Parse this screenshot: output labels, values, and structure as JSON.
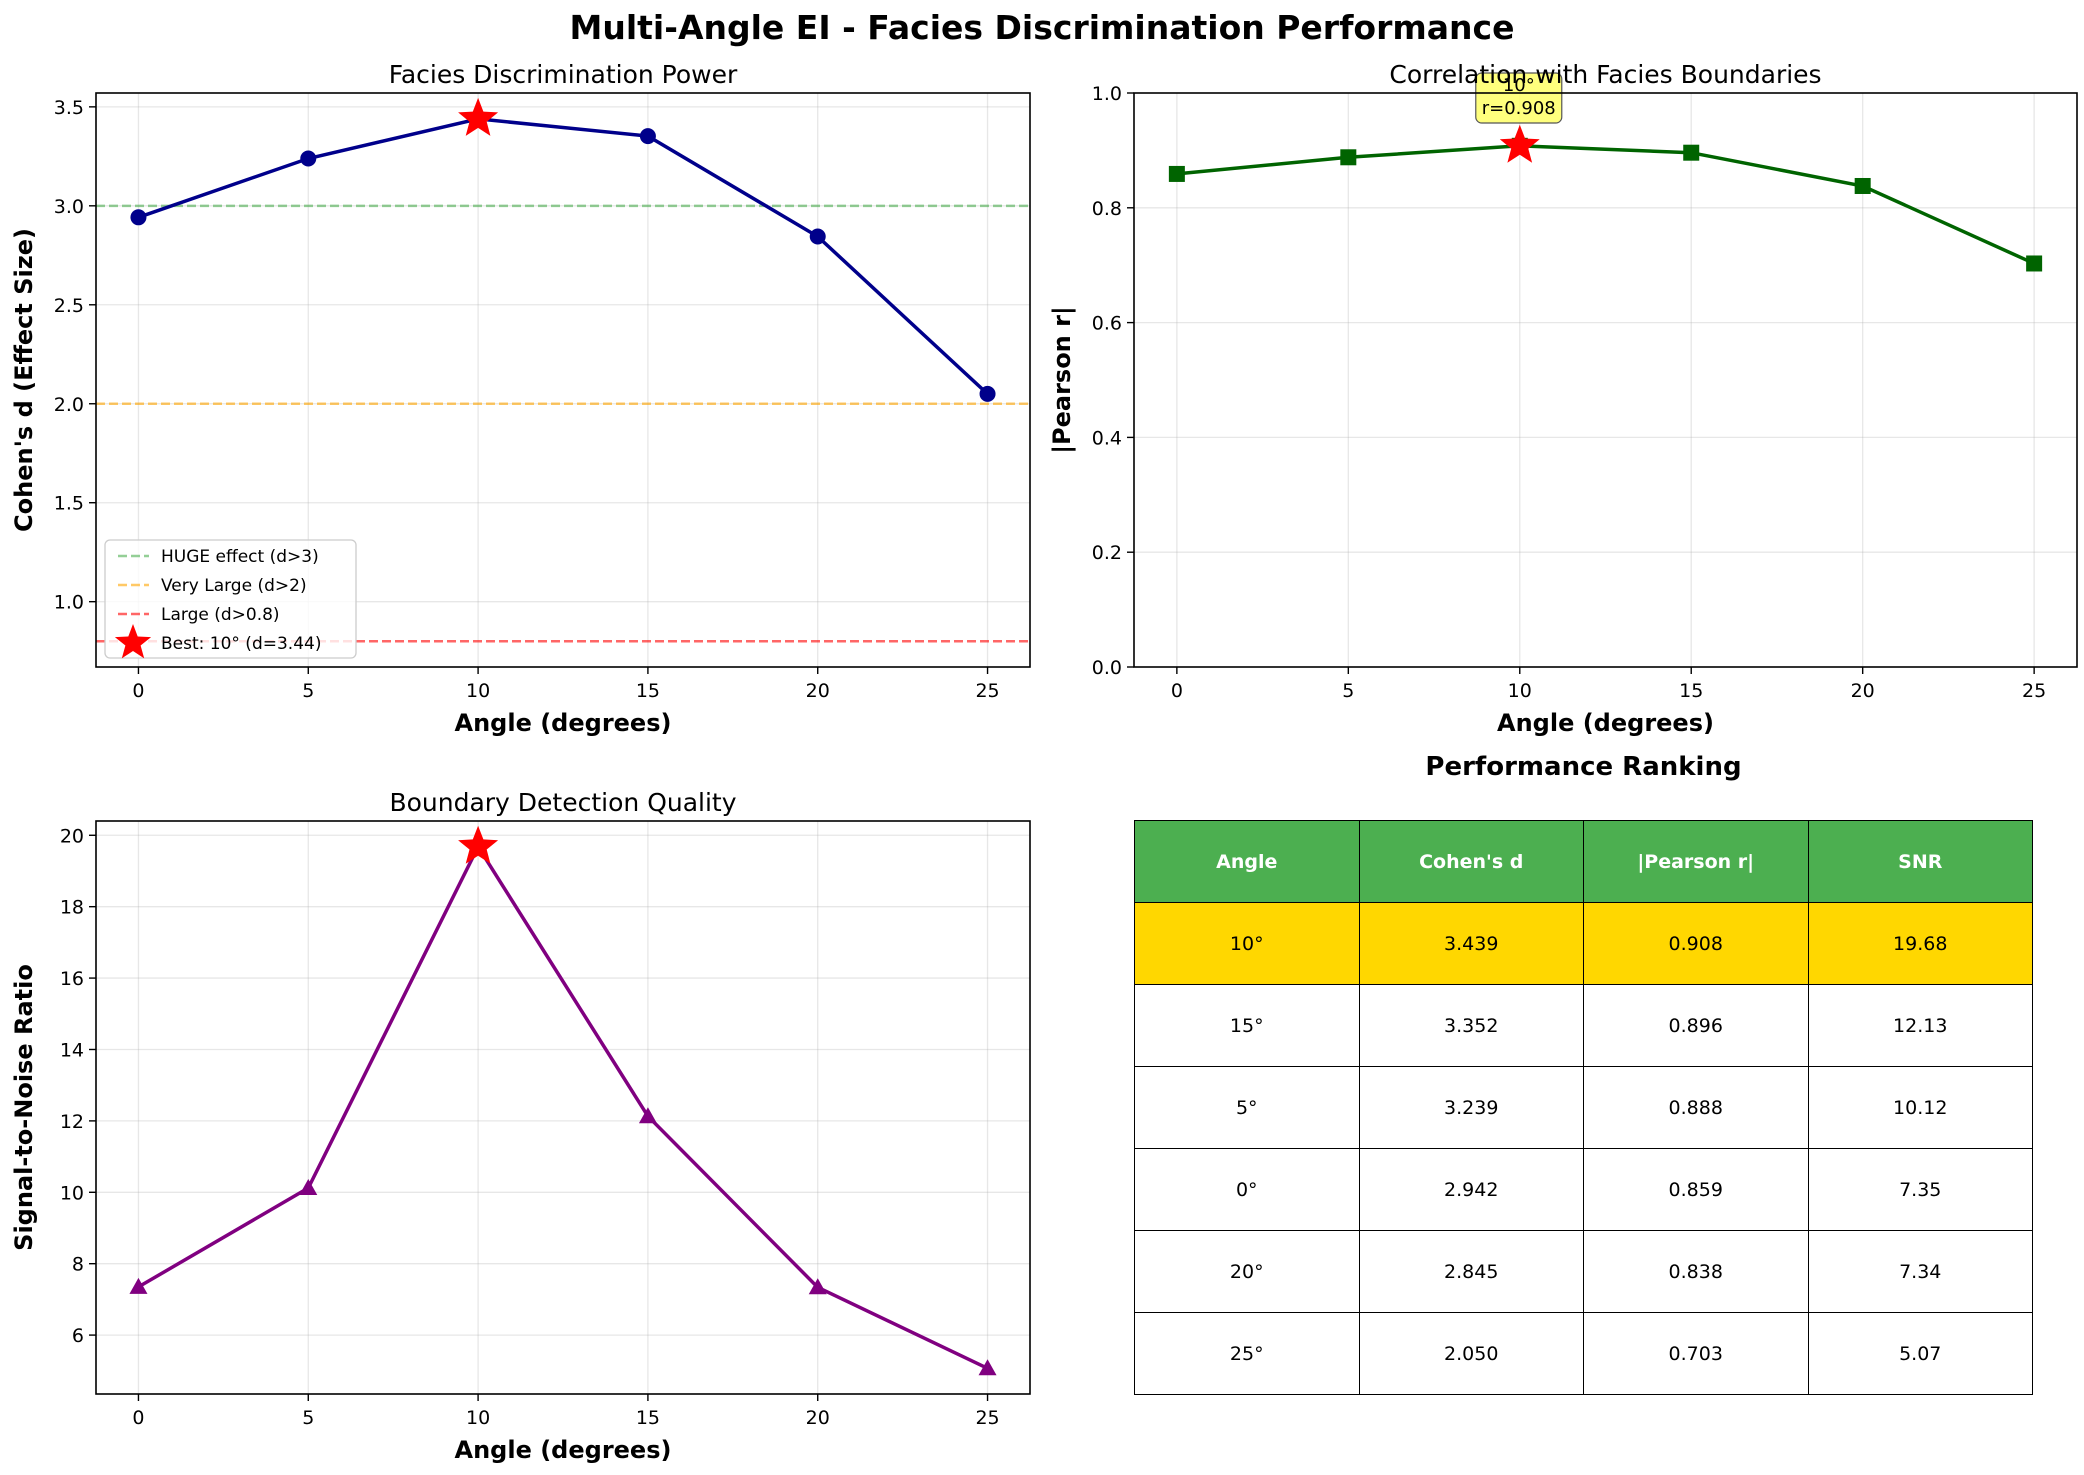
{
  "figure": {
    "title": "Multi-Angle EI - Facies Discrimination Performance"
  },
  "colors": {
    "navy": "#00008b",
    "darkgreen": "#006400",
    "purple": "#800080",
    "star": "#ff0000",
    "ref_green": "#4caf50",
    "ref_orange": "#ffa500",
    "ref_red": "#ff0000",
    "annot_bg": "#ffff66",
    "header_green": "#4caf50",
    "best_gold": "#ffd700"
  },
  "chart_data": [
    {
      "type": "line",
      "title": "Facies Discrimination Power",
      "xlabel": "Angle (degrees)",
      "ylabel": "Cohen's d (Effect Size)",
      "x": [
        0,
        5,
        10,
        15,
        20,
        25
      ],
      "series": [
        {
          "values": [
            2.942,
            3.239,
            3.439,
            3.352,
            2.845,
            2.05
          ],
          "color": "#00008b",
          "marker": "circle"
        }
      ],
      "reference_lines": [
        {
          "y": 3.0,
          "label": "HUGE effect (d>3)",
          "color": "#4caf50"
        },
        {
          "y": 2.0,
          "label": "Very Large (d>2)",
          "color": "#ffa500"
        },
        {
          "y": 0.8,
          "label": "Large (d>0.8)",
          "color": "#ff0000"
        }
      ],
      "best": {
        "x": 10,
        "y": 3.439,
        "label": "Best: 10° (d=3.44)"
      },
      "xlim": [
        -1.25,
        26.25
      ],
      "ylim": [
        0.67,
        3.57
      ],
      "xticks": [
        0,
        5,
        10,
        15,
        20,
        25
      ],
      "yticks": [
        1.0,
        1.5,
        2.0,
        2.5,
        3.0,
        3.5
      ],
      "ytick_labels": [
        "1.0",
        "1.5",
        "2.0",
        "2.5",
        "3.0",
        "3.5"
      ],
      "grid": true,
      "legend": "lower-left"
    },
    {
      "type": "line",
      "title": "Correlation with Facies Boundaries",
      "xlabel": "Angle (degrees)",
      "ylabel": "|Pearson r|",
      "x": [
        0,
        5,
        10,
        15,
        20,
        25
      ],
      "series": [
        {
          "values": [
            0.859,
            0.888,
            0.908,
            0.896,
            0.838,
            0.703
          ],
          "color": "#006400",
          "marker": "square"
        }
      ],
      "best": {
        "x": 10,
        "y": 0.908
      },
      "annotation": {
        "x": 10,
        "line1": "10°",
        "line2": "r=0.908"
      },
      "xlim": [
        -1.25,
        26.25
      ],
      "ylim": [
        0,
        1
      ],
      "xticks": [
        0,
        5,
        10,
        15,
        20,
        25
      ],
      "yticks": [
        0,
        0.2,
        0.4,
        0.6,
        0.8,
        1.0
      ],
      "ytick_labels": [
        "0.0",
        "0.2",
        "0.4",
        "0.6",
        "0.8",
        "1.0"
      ],
      "grid": true
    },
    {
      "type": "line",
      "title": "Boundary Detection Quality",
      "xlabel": "Angle (degrees)",
      "ylabel": "Signal-to-Noise Ratio",
      "x": [
        0,
        5,
        10,
        15,
        20,
        25
      ],
      "series": [
        {
          "values": [
            7.35,
            10.12,
            19.68,
            12.13,
            7.34,
            5.07
          ],
          "color": "#800080",
          "marker": "triangle"
        }
      ],
      "best": {
        "x": 10,
        "y": 19.68
      },
      "xlim": [
        -1.25,
        26.25
      ],
      "ylim": [
        4.35,
        20.4
      ],
      "xticks": [
        0,
        5,
        10,
        15,
        20,
        25
      ],
      "yticks": [
        6,
        8,
        10,
        12,
        14,
        16,
        18,
        20
      ],
      "ytick_labels": [
        "6",
        "8",
        "10",
        "12",
        "14",
        "16",
        "18",
        "20"
      ],
      "grid": true
    },
    {
      "type": "table",
      "title": "Performance Ranking",
      "columns": [
        "Angle",
        "Cohen's d",
        "|Pearson r|",
        "SNR"
      ],
      "rows": [
        [
          "10°",
          "3.439",
          "0.908",
          "19.68"
        ],
        [
          "15°",
          "3.352",
          "0.896",
          "12.13"
        ],
        [
          "5°",
          "3.239",
          "0.888",
          "10.12"
        ],
        [
          "0°",
          "2.942",
          "0.859",
          "7.35"
        ],
        [
          "20°",
          "2.845",
          "0.838",
          "7.34"
        ],
        [
          "25°",
          "2.050",
          "0.703",
          "5.07"
        ]
      ],
      "highlight_row": 0
    }
  ]
}
